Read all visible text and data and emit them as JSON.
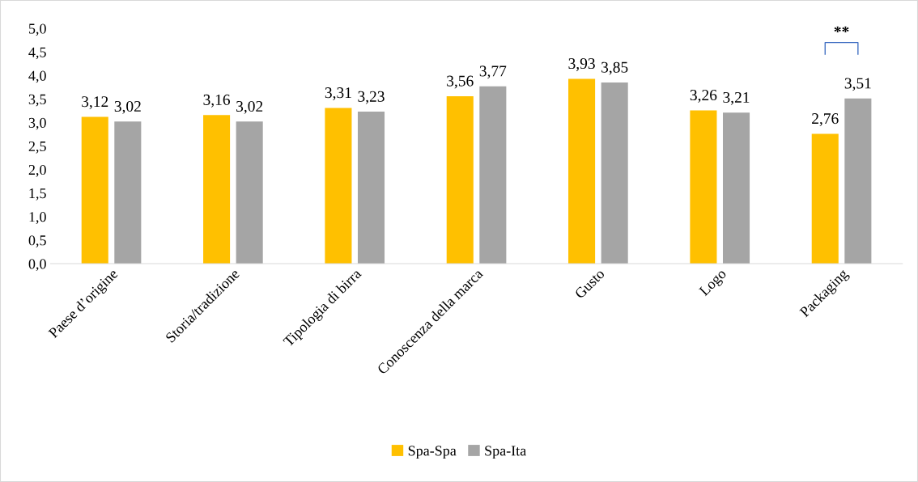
{
  "chart_data": {
    "type": "bar",
    "categories": [
      "Paese d’origine",
      "Storia/tradizione",
      "Tipologia di birra",
      "Conoscenza della marca",
      "Gusto",
      "Logo",
      "Packaging"
    ],
    "series": [
      {
        "name": "Spa-Spa",
        "color": "#ffc000",
        "values": [
          3.12,
          3.16,
          3.31,
          3.56,
          3.93,
          3.26,
          2.76
        ],
        "value_labels": [
          "3,12",
          "3,16",
          "3,31",
          "3,56",
          "3,93",
          "3,26",
          "2,76"
        ]
      },
      {
        "name": "Spa-Ita",
        "color": "#a5a5a5",
        "values": [
          3.02,
          3.02,
          3.23,
          3.77,
          3.85,
          3.21,
          3.51
        ],
        "value_labels": [
          "3,02",
          "3,02",
          "3,23",
          "3,77",
          "3,85",
          "3,21",
          "3,51"
        ]
      }
    ],
    "ylim": [
      0,
      5
    ],
    "yticks": [
      {
        "value": 0,
        "label": "0,0"
      },
      {
        "value": 0.5,
        "label": "0,5"
      },
      {
        "value": 1,
        "label": "1,0"
      },
      {
        "value": 1.5,
        "label": "1,5"
      },
      {
        "value": 2,
        "label": "2,0"
      },
      {
        "value": 2.5,
        "label": "2,5"
      },
      {
        "value": 3,
        "label": "3,0"
      },
      {
        "value": 3.5,
        "label": "3,5"
      },
      {
        "value": 4,
        "label": "4,0"
      },
      {
        "value": 4.5,
        "label": "4,5"
      },
      {
        "value": 5,
        "label": "5,0"
      }
    ],
    "annotations": [
      "**"
    ],
    "grid": false,
    "legend": "bottom"
  }
}
